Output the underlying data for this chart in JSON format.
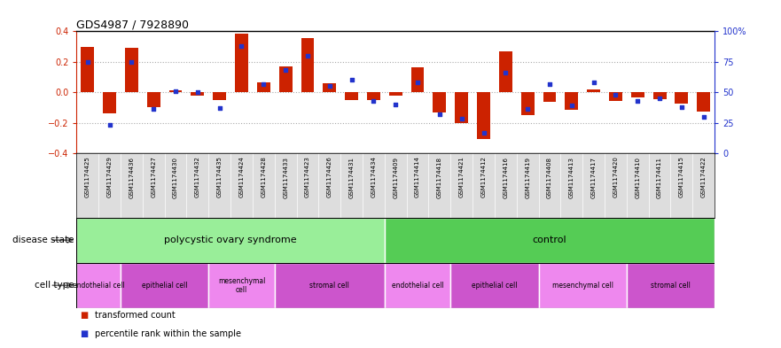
{
  "title": "GDS4987 / 7928890",
  "samples": [
    "GSM1174425",
    "GSM1174429",
    "GSM1174436",
    "GSM1174427",
    "GSM1174430",
    "GSM1174432",
    "GSM1174435",
    "GSM1174424",
    "GSM1174428",
    "GSM1174433",
    "GSM1174423",
    "GSM1174426",
    "GSM1174431",
    "GSM1174434",
    "GSM1174409",
    "GSM1174414",
    "GSM1174418",
    "GSM1174421",
    "GSM1174412",
    "GSM1174416",
    "GSM1174419",
    "GSM1174408",
    "GSM1174413",
    "GSM1174417",
    "GSM1174420",
    "GSM1174410",
    "GSM1174411",
    "GSM1174415",
    "GSM1174422"
  ],
  "bar_values": [
    0.3,
    -0.14,
    0.29,
    -0.1,
    0.01,
    -0.02,
    -0.05,
    0.385,
    0.065,
    0.17,
    0.355,
    0.06,
    -0.05,
    -0.05,
    -0.02,
    0.165,
    -0.135,
    -0.205,
    -0.31,
    0.27,
    -0.15,
    -0.065,
    -0.115,
    0.02,
    -0.055,
    -0.035,
    -0.045,
    -0.075,
    -0.125
  ],
  "dot_values_pct": [
    75,
    23,
    75,
    36,
    51,
    50,
    37,
    88,
    57,
    68,
    80,
    55,
    60,
    43,
    40,
    58,
    32,
    28,
    17,
    66,
    36,
    57,
    39,
    58,
    48,
    43,
    45,
    38,
    30
  ],
  "ylim_left": [
    -0.4,
    0.4
  ],
  "ylim_right": [
    0,
    100
  ],
  "bar_color": "#cc2200",
  "dot_color": "#2233cc",
  "grid_color": "#aaaaaa",
  "disease_groups": [
    {
      "label": "polycystic ovary syndrome",
      "start": 0,
      "end": 14,
      "color": "#99ee99"
    },
    {
      "label": "control",
      "start": 14,
      "end": 29,
      "color": "#55cc55"
    }
  ],
  "cell_groups": [
    {
      "label": "endothelial cell",
      "start": 0,
      "end": 2,
      "color": "#ee88ee"
    },
    {
      "label": "epithelial cell",
      "start": 2,
      "end": 6,
      "color": "#cc55cc"
    },
    {
      "label": "mesenchymal\ncell",
      "start": 6,
      "end": 9,
      "color": "#ee88ee"
    },
    {
      "label": "stromal cell",
      "start": 9,
      "end": 14,
      "color": "#cc55cc"
    },
    {
      "label": "endothelial cell",
      "start": 14,
      "end": 17,
      "color": "#ee88ee"
    },
    {
      "label": "epithelial cell",
      "start": 17,
      "end": 21,
      "color": "#cc55cc"
    },
    {
      "label": "mesenchymal cell",
      "start": 21,
      "end": 25,
      "color": "#ee88ee"
    },
    {
      "label": "stromal cell",
      "start": 25,
      "end": 29,
      "color": "#cc55cc"
    }
  ],
  "legend": [
    {
      "label": "transformed count",
      "color": "#cc2200"
    },
    {
      "label": "percentile rank within the sample",
      "color": "#2233cc"
    }
  ],
  "left_yticks": [
    -0.4,
    -0.2,
    0.0,
    0.2,
    0.4
  ],
  "right_yticks": [
    0,
    25,
    50,
    75,
    100
  ],
  "right_yticklabels": [
    "0",
    "25",
    "50",
    "75",
    "100%"
  ],
  "hlines": [
    0.2,
    0.0,
    -0.2
  ],
  "bar_width": 0.6,
  "dot_size": 10
}
